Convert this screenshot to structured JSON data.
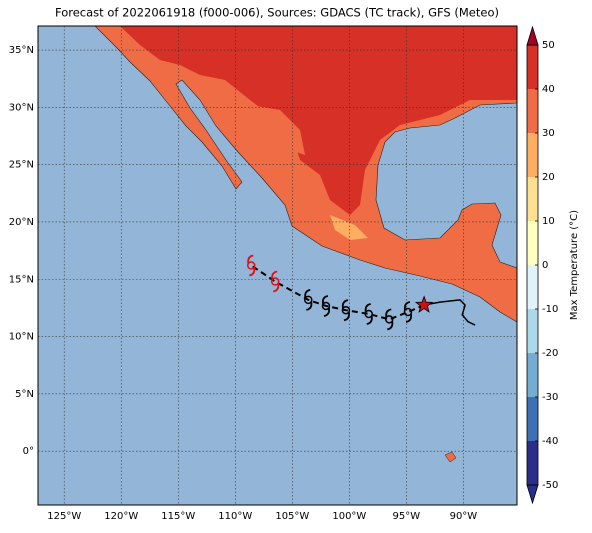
{
  "title": "Forecast of 2022061918 (f000-006), Sources: GDACS (TC track), GFS (Meteo)",
  "map": {
    "xlim": [
      -127.3,
      -85.3
    ],
    "ylim": [
      -4.7,
      37.1
    ],
    "xticks": [
      {
        "value": -125,
        "label": "125°W"
      },
      {
        "value": -120,
        "label": "120°W"
      },
      {
        "value": -115,
        "label": "115°W"
      },
      {
        "value": -110,
        "label": "110°W"
      },
      {
        "value": -105,
        "label": "105°W"
      },
      {
        "value": -100,
        "label": "100°W"
      },
      {
        "value": -95,
        "label": "95°W"
      },
      {
        "value": -90,
        "label": "90°W"
      }
    ],
    "yticks": [
      {
        "value": 0,
        "label": "0°"
      },
      {
        "value": 5,
        "label": "5°N"
      },
      {
        "value": 10,
        "label": "10°N"
      },
      {
        "value": 15,
        "label": "15°N"
      },
      {
        "value": 20,
        "label": "20°N"
      },
      {
        "value": 25,
        "label": "25°N"
      },
      {
        "value": 30,
        "label": "30°N"
      },
      {
        "value": 35,
        "label": "35°N"
      }
    ],
    "grid": true,
    "current_position": {
      "lon": -93.45,
      "lat": 12.75,
      "color": "#cc1111"
    },
    "past_track": {
      "lon": [
        -93.45,
        -92.05,
        -90.3,
        -89.85,
        -90.1,
        -89.6,
        -88.97
      ],
      "lat": [
        12.75,
        13.0,
        13.2,
        12.75,
        11.9,
        11.3,
        11.0
      ]
    },
    "forecast": {
      "lon": [
        -94.86,
        -96.5,
        -98.3,
        -100.3,
        -102.05,
        -103.6,
        -106.5,
        -108.6
      ],
      "lat": [
        12.14,
        11.5,
        11.97,
        12.3,
        12.67,
        13.2,
        14.8,
        16.2
      ],
      "colors": [
        "#000000",
        "#000000",
        "#000000",
        "#000000",
        "#000000",
        "#000000",
        "#e01010",
        "#e01010"
      ]
    }
  },
  "colorbar": {
    "label": "Max Temperature (°C)",
    "lim": [
      -50,
      50
    ],
    "ticks": [
      -50,
      -40,
      -30,
      -20,
      -10,
      0,
      10,
      20,
      30,
      40,
      50
    ],
    "colors": [
      "#2a2e8a",
      "#3f70b3",
      "#74add1",
      "#abd9e9",
      "#e0f3f8",
      "#ffffbf",
      "#fee090",
      "#fdae61",
      "#f06c45",
      "#d73027",
      "#a50026"
    ]
  }
}
